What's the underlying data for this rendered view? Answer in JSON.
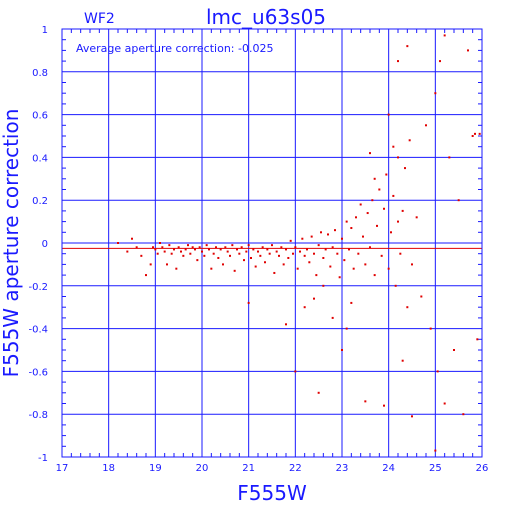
{
  "chart_data": {
    "type": "scatter",
    "title": "lmc_u63s05",
    "panel_label": "WF2",
    "annotation": "Average aperture correction: -0.025",
    "xlabel": "F555W",
    "ylabel": "F555W aperture correction",
    "xlim": [
      17,
      26
    ],
    "ylim": [
      -1,
      1
    ],
    "x_ticks": [
      "17",
      "18",
      "19",
      "20",
      "21",
      "22",
      "23",
      "24",
      "25",
      "26"
    ],
    "y_ticks": [
      "-1",
      "-0.8",
      "-0.6",
      "-0.4",
      "-0.2",
      "0",
      "0.2",
      "0.4",
      "0.6",
      "0.8",
      "1"
    ],
    "grid": true,
    "reference_lines": [
      {
        "y": 0,
        "color": "#1a1aff"
      },
      {
        "y": -0.025,
        "color": "#e00000"
      }
    ],
    "points_color": "#e00000",
    "axis_color": "#1a1aff",
    "points": [
      [
        18.2,
        0.0
      ],
      [
        18.4,
        -0.04
      ],
      [
        18.5,
        0.02
      ],
      [
        18.6,
        -0.02
      ],
      [
        18.7,
        -0.06
      ],
      [
        18.8,
        -0.15
      ],
      [
        18.9,
        -0.1
      ],
      [
        18.95,
        -0.02
      ],
      [
        19.0,
        -0.03
      ],
      [
        19.05,
        -0.05
      ],
      [
        19.1,
        0.0
      ],
      [
        19.15,
        -0.02
      ],
      [
        19.2,
        -0.04
      ],
      [
        19.25,
        -0.1
      ],
      [
        19.3,
        -0.01
      ],
      [
        19.35,
        -0.05
      ],
      [
        19.4,
        -0.03
      ],
      [
        19.45,
        -0.12
      ],
      [
        19.5,
        -0.02
      ],
      [
        19.55,
        -0.04
      ],
      [
        19.6,
        -0.06
      ],
      [
        19.65,
        -0.03
      ],
      [
        19.7,
        -0.01
      ],
      [
        19.75,
        -0.05
      ],
      [
        19.8,
        -0.02
      ],
      [
        19.85,
        -0.03
      ],
      [
        19.9,
        -0.08
      ],
      [
        19.95,
        -0.02
      ],
      [
        20.0,
        -0.04
      ],
      [
        20.05,
        -0.06
      ],
      [
        20.1,
        -0.01
      ],
      [
        20.15,
        -0.03
      ],
      [
        20.2,
        -0.12
      ],
      [
        20.25,
        -0.05
      ],
      [
        20.3,
        -0.02
      ],
      [
        20.35,
        -0.07
      ],
      [
        20.4,
        -0.03
      ],
      [
        20.45,
        -0.1
      ],
      [
        20.5,
        -0.02
      ],
      [
        20.55,
        -0.04
      ],
      [
        20.6,
        -0.06
      ],
      [
        20.65,
        -0.01
      ],
      [
        20.7,
        -0.13
      ],
      [
        20.75,
        -0.03
      ],
      [
        20.8,
        -0.05
      ],
      [
        20.85,
        -0.02
      ],
      [
        20.9,
        -0.08
      ],
      [
        20.95,
        -0.04
      ],
      [
        21.0,
        -0.01
      ],
      [
        21.05,
        -0.07
      ],
      [
        21.1,
        -0.03
      ],
      [
        21.15,
        -0.11
      ],
      [
        21.2,
        -0.04
      ],
      [
        21.25,
        -0.06
      ],
      [
        21.3,
        -0.02
      ],
      [
        21.35,
        -0.09
      ],
      [
        21.4,
        -0.03
      ],
      [
        21.45,
        -0.05
      ],
      [
        21.5,
        -0.01
      ],
      [
        21.55,
        -0.14
      ],
      [
        21.6,
        -0.04
      ],
      [
        21.65,
        -0.06
      ],
      [
        21.7,
        -0.02
      ],
      [
        21.75,
        -0.1
      ],
      [
        21.8,
        -0.03
      ],
      [
        21.85,
        -0.07
      ],
      [
        21.9,
        0.01
      ],
      [
        21.95,
        -0.05
      ],
      [
        22.0,
        -0.02
      ],
      [
        22.05,
        -0.12
      ],
      [
        22.1,
        -0.04
      ],
      [
        22.15,
        0.02
      ],
      [
        22.2,
        -0.06
      ],
      [
        22.25,
        -0.03
      ],
      [
        22.3,
        -0.09
      ],
      [
        22.35,
        0.03
      ],
      [
        22.4,
        -0.05
      ],
      [
        22.45,
        -0.15
      ],
      [
        22.5,
        -0.01
      ],
      [
        22.55,
        0.05
      ],
      [
        22.6,
        -0.07
      ],
      [
        22.65,
        -0.03
      ],
      [
        22.7,
        0.04
      ],
      [
        22.75,
        -0.11
      ],
      [
        22.8,
        -0.02
      ],
      [
        22.85,
        0.06
      ],
      [
        22.9,
        -0.05
      ],
      [
        22.95,
        -0.16
      ],
      [
        23.0,
        0.02
      ],
      [
        23.05,
        -0.08
      ],
      [
        23.1,
        0.1
      ],
      [
        23.15,
        -0.03
      ],
      [
        23.2,
        0.07
      ],
      [
        23.25,
        -0.12
      ],
      [
        23.3,
        0.12
      ],
      [
        23.35,
        -0.05
      ],
      [
        23.4,
        0.18
      ],
      [
        23.45,
        0.03
      ],
      [
        23.5,
        -0.1
      ],
      [
        23.55,
        0.14
      ],
      [
        23.6,
        -0.02
      ],
      [
        23.65,
        0.2
      ],
      [
        23.7,
        -0.15
      ],
      [
        23.75,
        0.08
      ],
      [
        23.8,
        0.25
      ],
      [
        23.85,
        -0.06
      ],
      [
        23.9,
        0.16
      ],
      [
        23.95,
        0.32
      ],
      [
        24.0,
        -0.12
      ],
      [
        24.05,
        0.05
      ],
      [
        24.1,
        0.22
      ],
      [
        24.15,
        -0.2
      ],
      [
        24.2,
        0.1
      ],
      [
        24.25,
        -0.05
      ],
      [
        24.3,
        0.15
      ],
      [
        24.35,
        0.35
      ],
      [
        24.4,
        -0.3
      ],
      [
        24.45,
        0.48
      ],
      [
        24.5,
        -0.1
      ],
      [
        24.6,
        0.12
      ],
      [
        24.7,
        -0.25
      ],
      [
        24.8,
        0.55
      ],
      [
        24.9,
        -0.4
      ],
      [
        25.0,
        0.7
      ],
      [
        25.05,
        -0.6
      ],
      [
        25.1,
        0.85
      ],
      [
        25.2,
        -0.75
      ],
      [
        25.3,
        0.4
      ],
      [
        25.4,
        -0.5
      ],
      [
        25.5,
        0.2
      ],
      [
        25.6,
        -0.8
      ],
      [
        25.7,
        0.9
      ],
      [
        25.8,
        0.5
      ],
      [
        25.9,
        -0.45
      ],
      [
        25.95,
        0.51
      ],
      [
        25.85,
        0.51
      ],
      [
        21.0,
        -0.28
      ],
      [
        21.8,
        -0.38
      ],
      [
        22.0,
        -0.6
      ],
      [
        22.2,
        -0.3
      ],
      [
        22.4,
        -0.26
      ],
      [
        22.5,
        -0.7
      ],
      [
        22.6,
        -0.2
      ],
      [
        22.8,
        -0.35
      ],
      [
        23.0,
        -0.5
      ],
      [
        23.1,
        -0.4
      ],
      [
        23.2,
        -0.28
      ],
      [
        23.5,
        -0.74
      ],
      [
        23.9,
        -0.76
      ],
      [
        24.3,
        -0.55
      ],
      [
        24.5,
        -0.81
      ],
      [
        25.0,
        -0.97
      ],
      [
        24.2,
        0.4
      ],
      [
        24.0,
        0.6
      ],
      [
        24.1,
        0.45
      ],
      [
        23.7,
        0.3
      ],
      [
        23.6,
        0.42
      ],
      [
        24.2,
        0.85
      ],
      [
        24.4,
        0.92
      ],
      [
        25.2,
        0.97
      ]
    ]
  }
}
